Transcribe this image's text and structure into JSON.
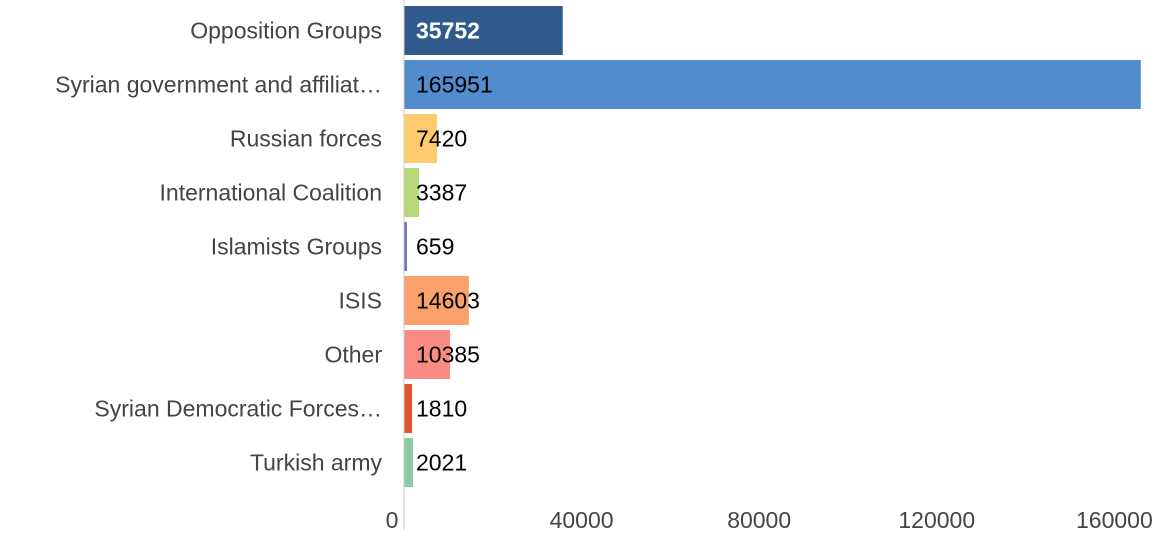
{
  "chart_data": {
    "type": "bar",
    "orientation": "horizontal",
    "categories": [
      "Opposition Groups",
      "Syrian government and affiliat…",
      "Russian forces",
      "International Coalition",
      "Islamists Groups",
      "ISIS",
      "Other",
      "Syrian Democratic Forces…",
      "Turkish army"
    ],
    "values": [
      35752,
      165951,
      7420,
      3387,
      659,
      14603,
      10385,
      1810,
      2021
    ],
    "data_labels": [
      "35752",
      "165951",
      "7420",
      "3387",
      "659",
      "14603",
      "10385",
      "1810",
      "2021"
    ],
    "colors": [
      "#2f5a8b",
      "#538ccc",
      "#fdcb6e",
      "#b8d97a",
      "#6a6fc6",
      "#f9a06b",
      "#f98b82",
      "#e0562f",
      "#8cc9a6"
    ],
    "label_colors": [
      "#ffffff",
      "#000000",
      "#000000",
      "#000000",
      "#000000",
      "#000000",
      "#000000",
      "#000000",
      "#000000"
    ],
    "xticks": [
      0,
      40000,
      80000,
      120000,
      160000
    ],
    "xtick_labels": [
      "0",
      "40000",
      "80000",
      "120000",
      "160000"
    ],
    "xlim": [
      0,
      166000
    ],
    "title": "",
    "xlabel": "",
    "ylabel": "",
    "grid": false,
    "legend": "none"
  }
}
